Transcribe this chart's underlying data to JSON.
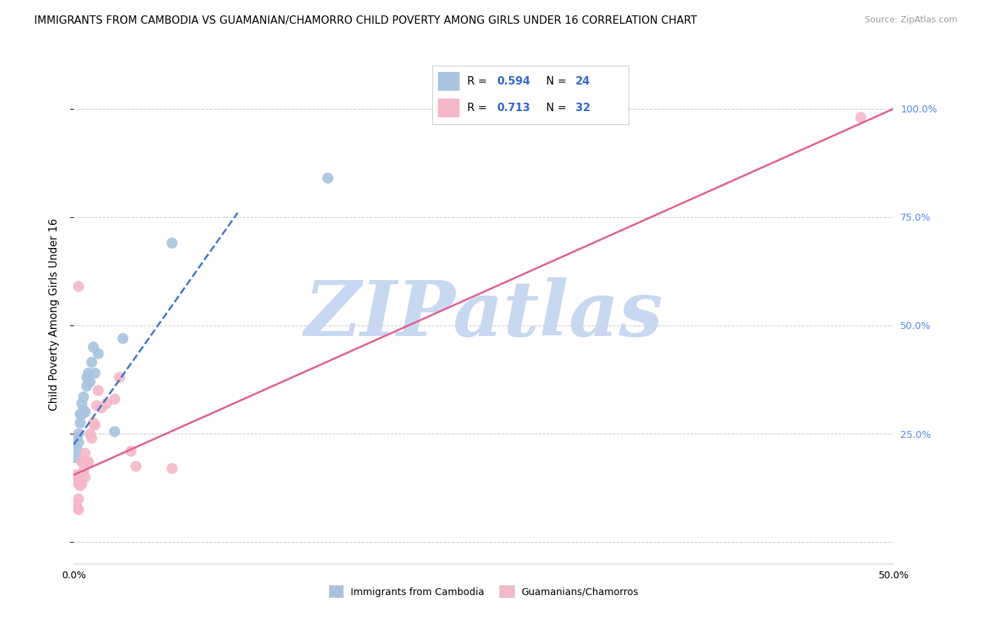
{
  "title": "IMMIGRANTS FROM CAMBODIA VS GUAMANIAN/CHAMORRO CHILD POVERTY AMONG GIRLS UNDER 16 CORRELATION CHART",
  "source": "Source: ZipAtlas.com",
  "ylabel": "Child Poverty Among Girls Under 16",
  "xlim": [
    0,
    0.5
  ],
  "ylim": [
    -0.05,
    1.1
  ],
  "cambodia_R": 0.594,
  "cambodia_N": 24,
  "guam_R": 0.713,
  "guam_N": 32,
  "cambodia_color": "#a8c4e0",
  "guam_color": "#f4b8c8",
  "cambodia_line_color": "#4477cc",
  "guam_line_color": "#e06090",
  "background_color": "#ffffff",
  "grid_color": "#cccccc",
  "watermark": "ZIPatlas",
  "watermark_color": "#c8d8f0",
  "title_fontsize": 11,
  "axis_label_fontsize": 11,
  "tick_fontsize": 10,
  "right_tick_color": "#5588ee",
  "legend_text_color": "#3366cc",
  "cambodia_line_x0": 0.0,
  "cambodia_line_y0": 0.225,
  "cambodia_line_x1": 0.1,
  "cambodia_line_y1": 0.76,
  "guam_line_x0": 0.0,
  "guam_line_y0": 0.155,
  "guam_line_x1": 0.5,
  "guam_line_y1": 1.0,
  "cambodia_x": [
    0.001,
    0.002,
    0.002,
    0.003,
    0.003,
    0.004,
    0.004,
    0.005,
    0.005,
    0.006,
    0.006,
    0.007,
    0.008,
    0.008,
    0.009,
    0.01,
    0.011,
    0.012,
    0.013,
    0.015,
    0.025,
    0.03,
    0.06,
    0.155
  ],
  "cambodia_y": [
    0.195,
    0.215,
    0.24,
    0.23,
    0.25,
    0.275,
    0.295,
    0.295,
    0.32,
    0.305,
    0.335,
    0.3,
    0.36,
    0.38,
    0.39,
    0.37,
    0.415,
    0.45,
    0.39,
    0.435,
    0.255,
    0.47,
    0.69,
    0.84
  ],
  "guam_x": [
    0.001,
    0.001,
    0.002,
    0.002,
    0.003,
    0.003,
    0.003,
    0.004,
    0.004,
    0.005,
    0.005,
    0.006,
    0.006,
    0.007,
    0.007,
    0.008,
    0.009,
    0.01,
    0.011,
    0.012,
    0.013,
    0.014,
    0.015,
    0.017,
    0.02,
    0.025,
    0.028,
    0.035,
    0.038,
    0.06,
    0.48,
    0.003
  ],
  "guam_y": [
    0.155,
    0.09,
    0.08,
    0.14,
    0.075,
    0.1,
    0.135,
    0.13,
    0.155,
    0.135,
    0.185,
    0.165,
    0.185,
    0.15,
    0.205,
    0.185,
    0.185,
    0.25,
    0.24,
    0.275,
    0.27,
    0.315,
    0.35,
    0.31,
    0.32,
    0.33,
    0.38,
    0.21,
    0.175,
    0.17,
    0.98,
    0.59
  ]
}
